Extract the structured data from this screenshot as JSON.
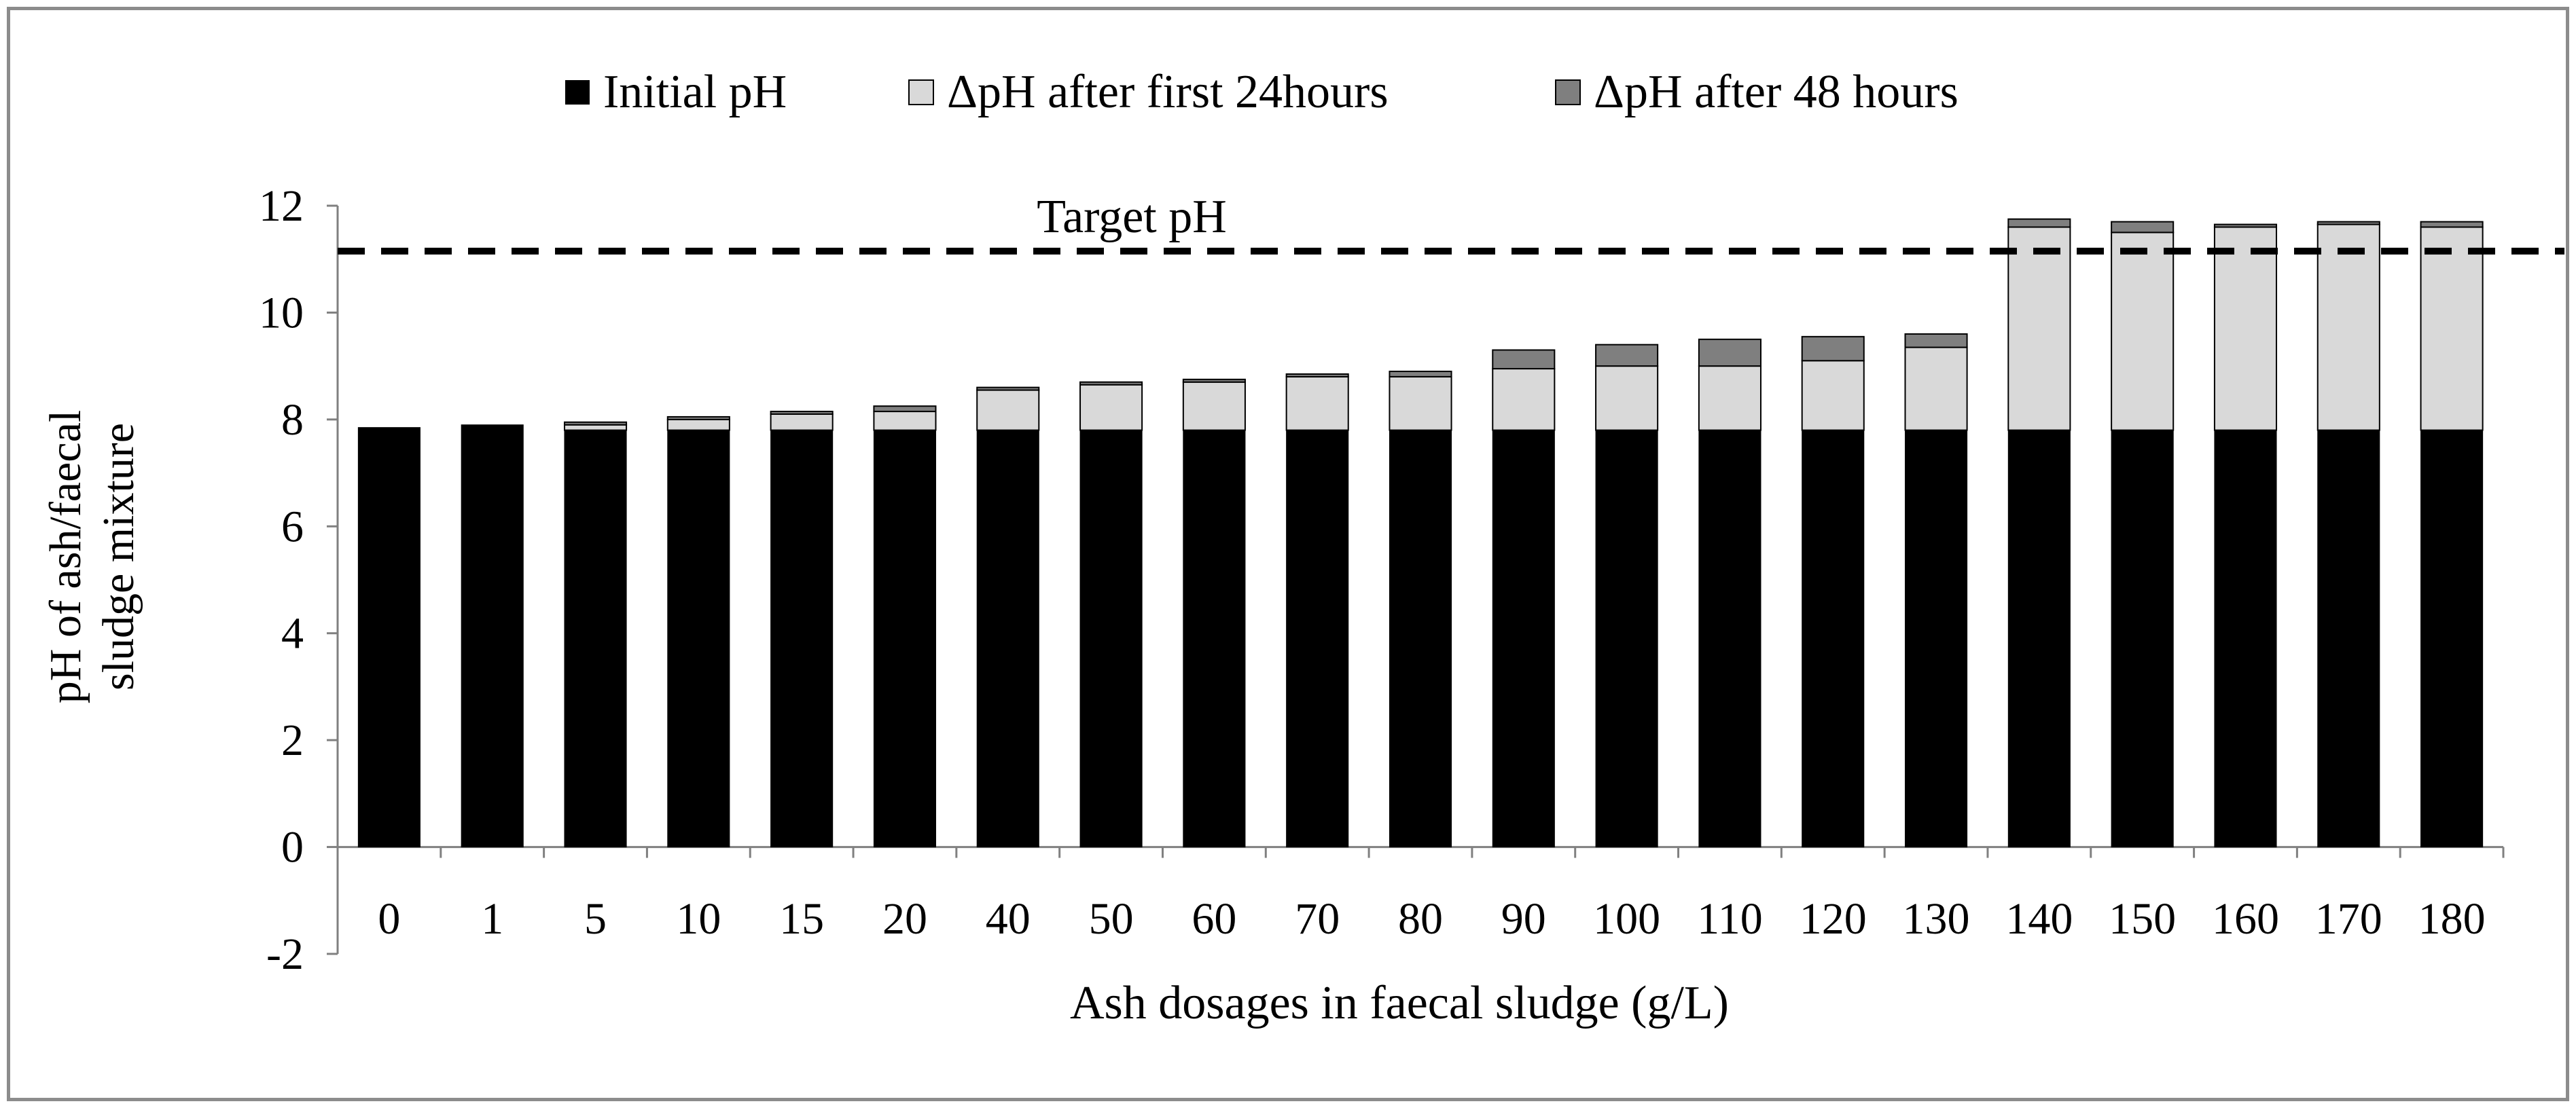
{
  "chart_data": {
    "type": "bar",
    "stacked": true,
    "categories": [
      "0",
      "1",
      "5",
      "10",
      "15",
      "20",
      "40",
      "50",
      "60",
      "70",
      "80",
      "90",
      "100",
      "110",
      "120",
      "130",
      "140",
      "150",
      "160",
      "170",
      "180"
    ],
    "series": [
      {
        "name": "Initial pH",
        "color": "#000000",
        "values": [
          7.85,
          7.9,
          7.8,
          7.8,
          7.8,
          7.8,
          7.8,
          7.8,
          7.8,
          7.8,
          7.8,
          7.8,
          7.8,
          7.8,
          7.8,
          7.8,
          7.8,
          7.8,
          7.8,
          7.8,
          7.8
        ]
      },
      {
        "name": "ΔpH after first 24hours",
        "color": "#d9d9d9",
        "values": [
          0,
          0,
          0.1,
          0.2,
          0.3,
          0.35,
          0.75,
          0.85,
          0.9,
          1.0,
          1.0,
          1.15,
          1.2,
          1.2,
          1.3,
          1.55,
          3.8,
          3.7,
          3.8,
          3.85,
          3.8
        ]
      },
      {
        "name": "ΔpH after 48 hours",
        "color": "#7f7f7f",
        "values": [
          0,
          0,
          0.05,
          0.05,
          0.05,
          0.1,
          0.05,
          0.05,
          0.05,
          0.05,
          0.1,
          0.35,
          0.4,
          0.5,
          0.45,
          0.25,
          0.15,
          0.2,
          0.05,
          0.05,
          0.1
        ]
      }
    ],
    "legend_labels": [
      "Initial pH",
      "ΔpH after first 24hours",
      "ΔpH after 48 hours"
    ],
    "xlabel": "Ash dosages in faecal sludge (g/L)",
    "ylabel_lines": [
      "pH of ash/faecal",
      "sludge mixture"
    ],
    "ylim": [
      -2,
      12
    ],
    "yticks": [
      "-2",
      "0",
      "2",
      "4",
      "6",
      "8",
      "10",
      "12"
    ],
    "target_line": {
      "value": 11.15,
      "label": "Target pH",
      "style": "dashed"
    },
    "legend_position": "top",
    "grid": false
  }
}
